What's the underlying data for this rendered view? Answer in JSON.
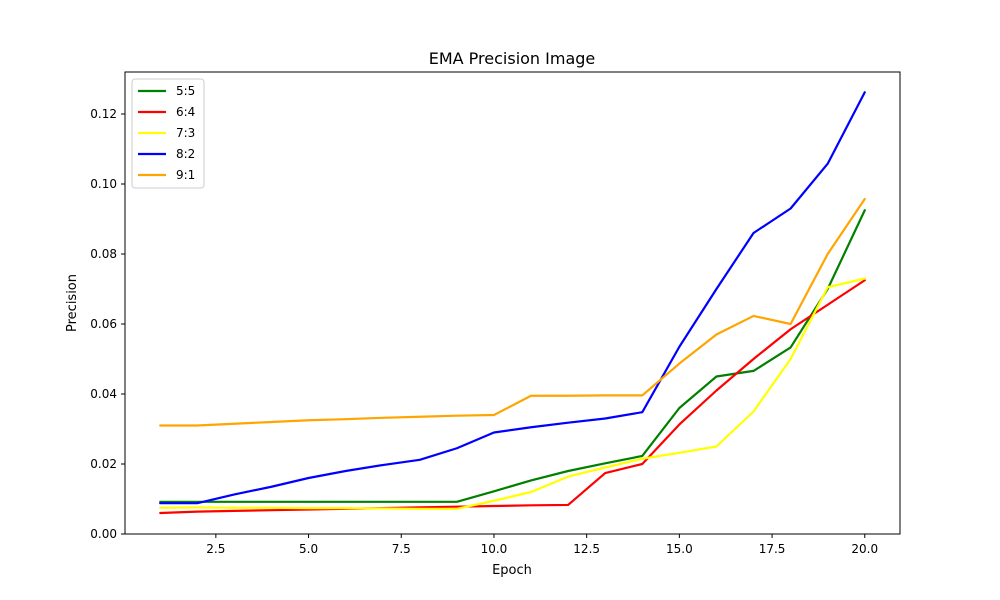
{
  "chart_data": {
    "type": "line",
    "title": "EMA Precision Image",
    "xlabel": "Epoch",
    "ylabel": "Precision",
    "xlim": [
      0.05,
      20.95
    ],
    "ylim": [
      0.0,
      0.132
    ],
    "xticks": [
      2.5,
      5.0,
      7.5,
      10.0,
      12.5,
      15.0,
      17.5,
      20.0
    ],
    "xtick_labels": [
      "2.5",
      "5.0",
      "7.5",
      "10.0",
      "12.5",
      "15.0",
      "17.5",
      "20.0"
    ],
    "yticks": [
      0.0,
      0.02,
      0.04,
      0.06,
      0.08,
      0.1,
      0.12
    ],
    "ytick_labels": [
      "0.00",
      "0.02",
      "0.04",
      "0.06",
      "0.08",
      "0.10",
      "0.12"
    ],
    "grid": false,
    "legend_position": "top-left",
    "x": [
      1,
      2,
      3,
      4,
      5,
      6,
      7,
      8,
      9,
      10,
      11,
      12,
      13,
      14,
      15,
      16,
      17,
      18,
      19,
      20
    ],
    "series": [
      {
        "name": "5:5",
        "color": "#008000",
        "values": [
          0.0092,
          0.0092,
          0.0092,
          0.0092,
          0.0092,
          0.0092,
          0.0092,
          0.0092,
          0.0092,
          0.0122,
          0.0153,
          0.018,
          0.0202,
          0.0223,
          0.036,
          0.045,
          0.0466,
          0.0533,
          0.07,
          0.0925
        ]
      },
      {
        "name": "6:4",
        "color": "#ff0000",
        "values": [
          0.006,
          0.0064,
          0.0066,
          0.0068,
          0.007,
          0.0072,
          0.0074,
          0.0076,
          0.0078,
          0.008,
          0.0082,
          0.0083,
          0.0174,
          0.02,
          0.0313,
          0.041,
          0.05,
          0.0585,
          0.0655,
          0.0725
        ]
      },
      {
        "name": "7:3",
        "color": "#ffff00",
        "values": [
          0.0075,
          0.0076,
          0.0075,
          0.0075,
          0.0074,
          0.0074,
          0.0073,
          0.0072,
          0.0072,
          0.0095,
          0.012,
          0.0164,
          0.019,
          0.0215,
          0.0232,
          0.025,
          0.035,
          0.05,
          0.0705,
          0.073
        ]
      },
      {
        "name": "8:2",
        "color": "#0000ff",
        "values": [
          0.0088,
          0.0088,
          0.0113,
          0.0135,
          0.016,
          0.018,
          0.0197,
          0.0212,
          0.0245,
          0.029,
          0.0305,
          0.0318,
          0.033,
          0.0348,
          0.0535,
          0.07,
          0.086,
          0.093,
          0.1058,
          0.1262
        ]
      },
      {
        "name": "9:1",
        "color": "#ffa500",
        "values": [
          0.031,
          0.031,
          0.0315,
          0.032,
          0.0325,
          0.0328,
          0.0332,
          0.0335,
          0.0338,
          0.034,
          0.0395,
          0.0395,
          0.0396,
          0.0396,
          0.0487,
          0.057,
          0.0623,
          0.06,
          0.08,
          0.0957
        ]
      }
    ]
  }
}
